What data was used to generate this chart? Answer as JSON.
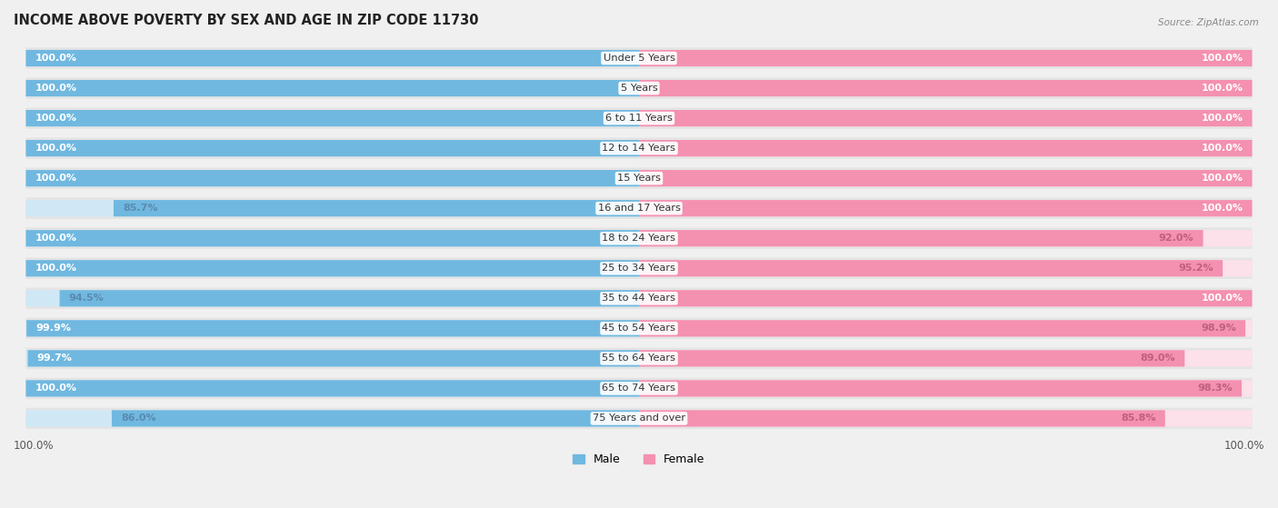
{
  "title": "INCOME ABOVE POVERTY BY SEX AND AGE IN ZIP CODE 11730",
  "source": "Source: ZipAtlas.com",
  "categories": [
    "Under 5 Years",
    "5 Years",
    "6 to 11 Years",
    "12 to 14 Years",
    "15 Years",
    "16 and 17 Years",
    "18 to 24 Years",
    "25 to 34 Years",
    "35 to 44 Years",
    "45 to 54 Years",
    "55 to 64 Years",
    "65 to 74 Years",
    "75 Years and over"
  ],
  "male_values": [
    100.0,
    100.0,
    100.0,
    100.0,
    100.0,
    85.7,
    100.0,
    100.0,
    94.5,
    99.9,
    99.7,
    100.0,
    86.0
  ],
  "female_values": [
    100.0,
    100.0,
    100.0,
    100.0,
    100.0,
    100.0,
    92.0,
    95.2,
    100.0,
    98.9,
    89.0,
    98.3,
    85.8
  ],
  "male_color": "#70b8e0",
  "female_color": "#f490b0",
  "male_light_color": "#d0e8f5",
  "female_light_color": "#fce0ea",
  "background_color": "#f0f0f0",
  "row_bg_color": "#e8e8e8",
  "bar_height": 0.55,
  "label_fontsize": 8.0,
  "title_fontsize": 10.5,
  "max_value": 100.0,
  "xlabel_legend_male": "Male",
  "xlabel_legend_female": "Female"
}
